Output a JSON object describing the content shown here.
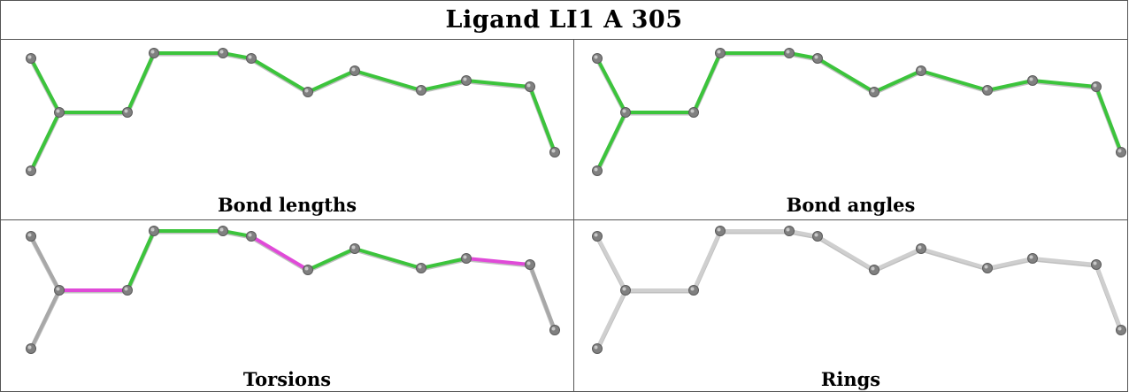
{
  "title": "Ligand LI1 A 305",
  "panels": [
    {
      "caption": "Bond lengths",
      "bond_colors": [
        "green",
        "green",
        "green",
        "green",
        "green",
        "green",
        "green",
        "green",
        "green",
        "green",
        "green",
        "green"
      ]
    },
    {
      "caption": "Bond angles",
      "bond_colors": [
        "green",
        "green",
        "green",
        "green",
        "green",
        "green",
        "green",
        "green",
        "green",
        "green",
        "green",
        "green"
      ]
    },
    {
      "caption": "Torsions",
      "bond_colors": [
        "grey",
        "grey",
        "magenta",
        "green",
        "green",
        "green",
        "magenta",
        "green",
        "green",
        "green",
        "magenta",
        "grey"
      ]
    },
    {
      "caption": "Rings",
      "bond_colors": [
        "lightgrey",
        "lightgrey",
        "lightgrey",
        "lightgrey",
        "lightgrey",
        "lightgrey",
        "lightgrey",
        "lightgrey",
        "lightgrey",
        "lightgrey",
        "lightgrey",
        "lightgrey"
      ]
    }
  ],
  "colors": {
    "green": "#3cc43c",
    "magenta": "#e04ad8",
    "grey": "#a8a8a8",
    "lightgrey": "#cfcfcf",
    "atom": "#808080"
  }
}
